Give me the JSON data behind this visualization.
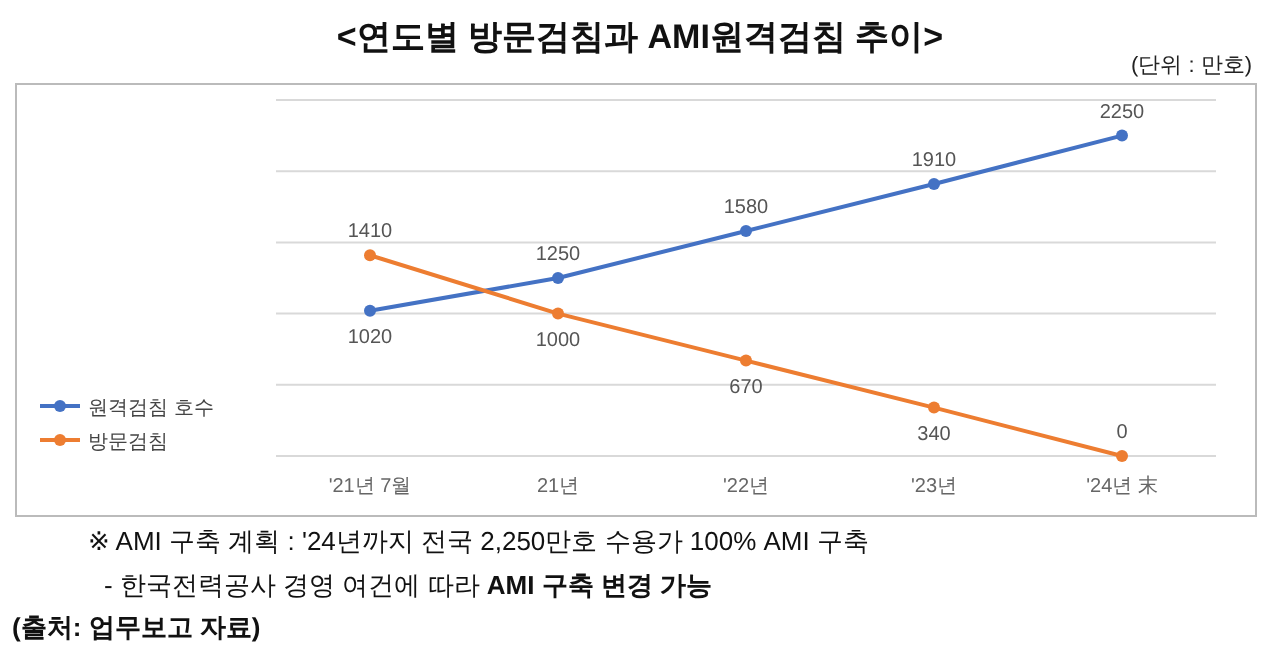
{
  "chart_data": {
    "type": "line",
    "title": "<연도별 방문검침과 AMI원격검침 추이>",
    "categories": [
      "'21년 7월",
      "21년",
      "'22년",
      "'23년",
      "'24년 末"
    ],
    "series": [
      {
        "name": "원격검침 호수",
        "color": "#4472c4",
        "values": [
          1020,
          1250,
          1580,
          1910,
          2250
        ]
      },
      {
        "name": "방문검침",
        "color": "#ed7d31",
        "values": [
          1410,
          1000,
          670,
          340,
          0
        ]
      }
    ],
    "ylim": [
      0,
      2500
    ],
    "yticks": [
      {
        "value": 0,
        "label": null
      },
      {
        "value": 500,
        "label": null
      },
      {
        "value": 1000,
        "label": null
      },
      {
        "value": 1500,
        "label": null
      },
      {
        "value": 2000,
        "label": null
      },
      {
        "value": 2500,
        "label": null
      }
    ],
    "tick_labels": "x",
    "grid": "y",
    "legend": "left",
    "marker": "circle",
    "line_style": "solid",
    "data_labels": true,
    "annotations": [
      "(단위 : 만호)",
      "※ AMI 구축 계획 : '24년까지 전국 2,250만호 수용가 100% AMI 구축",
      "- 한국전력공사 경영 여건에 따라 ",
      "AMI 구축 변경 가능",
      "(출처: 업무보고 자료)"
    ]
  }
}
